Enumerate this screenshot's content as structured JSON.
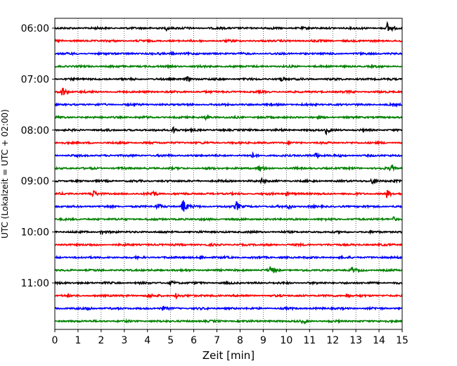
{
  "chart_data": {
    "type": "line",
    "title": "",
    "xlabel": "Zeit  [min]",
    "ylabel": "UTC (Lokalzeit = UTC + 02:00)",
    "xlim": [
      0,
      15
    ],
    "x_ticks": [
      0,
      1,
      2,
      3,
      4,
      5,
      6,
      7,
      8,
      9,
      10,
      11,
      12,
      13,
      14,
      15
    ],
    "x_tick_labels": [
      "0",
      "1",
      "2",
      "3",
      "4",
      "5",
      "6",
      "7",
      "8",
      "9",
      "10",
      "11",
      "12",
      "13",
      "14",
      "15"
    ],
    "grid": {
      "x": true,
      "y": false,
      "style": "dotted"
    },
    "legend": "none",
    "y_tick_labels": [
      "06:00",
      "07:00",
      "08:00",
      "09:00",
      "10:00",
      "11:00"
    ],
    "trace_interval_min": 15,
    "trace_colors": [
      "#000000",
      "#ff0000",
      "#0000ff",
      "#008000"
    ],
    "traces": [
      {
        "start": "06:00",
        "color": "#000000",
        "events": [
          {
            "t": 14.35,
            "amp": 1.3
          },
          {
            "t": 4.8,
            "amp": 0.5
          }
        ]
      },
      {
        "start": "06:15",
        "color": "#ff0000",
        "events": []
      },
      {
        "start": "06:30",
        "color": "#0000ff",
        "events": [
          {
            "t": 5.0,
            "amp": 0.4
          }
        ]
      },
      {
        "start": "06:45",
        "color": "#008000",
        "events": []
      },
      {
        "start": "07:00",
        "color": "#000000",
        "events": [
          {
            "t": 5.7,
            "amp": 0.7
          },
          {
            "t": 9.7,
            "amp": 0.8
          }
        ]
      },
      {
        "start": "07:15",
        "color": "#ff0000",
        "events": [
          {
            "t": 0.3,
            "amp": 1.5
          }
        ]
      },
      {
        "start": "07:30",
        "color": "#0000ff",
        "events": []
      },
      {
        "start": "07:45",
        "color": "#008000",
        "events": [
          {
            "t": 6.5,
            "amp": 0.5
          }
        ]
      },
      {
        "start": "08:00",
        "color": "#000000",
        "events": [
          {
            "t": 5.1,
            "amp": 0.8
          },
          {
            "t": 11.7,
            "amp": 0.9
          }
        ]
      },
      {
        "start": "08:15",
        "color": "#ff0000",
        "events": []
      },
      {
        "start": "08:30",
        "color": "#0000ff",
        "events": [
          {
            "t": 11.25,
            "amp": 0.9
          },
          {
            "t": 8.5,
            "amp": 0.5
          }
        ]
      },
      {
        "start": "08:45",
        "color": "#008000",
        "events": [
          {
            "t": 8.8,
            "amp": 0.9
          },
          {
            "t": 14.5,
            "amp": 0.8
          }
        ]
      },
      {
        "start": "09:00",
        "color": "#000000",
        "events": [
          {
            "t": 13.7,
            "amp": 1.0
          },
          {
            "t": 8.9,
            "amp": 0.6
          }
        ]
      },
      {
        "start": "09:15",
        "color": "#ff0000",
        "events": [
          {
            "t": 1.6,
            "amp": 1.1
          },
          {
            "t": 4.2,
            "amp": 0.8
          },
          {
            "t": 14.3,
            "amp": 1.3
          },
          {
            "t": 10.0,
            "amp": 0.5
          }
        ]
      },
      {
        "start": "09:30",
        "color": "#0000ff",
        "events": [
          {
            "t": 5.5,
            "amp": 2.4
          },
          {
            "t": 7.8,
            "amp": 1.6
          },
          {
            "t": 4.4,
            "amp": 0.9
          },
          {
            "t": 10.1,
            "amp": 0.6
          }
        ]
      },
      {
        "start": "09:45",
        "color": "#008000",
        "events": [
          {
            "t": 14.6,
            "amp": 0.6
          }
        ]
      },
      {
        "start": "10:00",
        "color": "#000000",
        "events": [
          {
            "t": 2.0,
            "amp": 0.5
          }
        ]
      },
      {
        "start": "10:15",
        "color": "#ff0000",
        "events": []
      },
      {
        "start": "10:30",
        "color": "#0000ff",
        "events": [
          {
            "t": 6.3,
            "amp": 0.4
          }
        ]
      },
      {
        "start": "10:45",
        "color": "#008000",
        "events": [
          {
            "t": 9.3,
            "amp": 1.0
          },
          {
            "t": 12.8,
            "amp": 0.6
          }
        ]
      },
      {
        "start": "11:00",
        "color": "#000000",
        "events": [
          {
            "t": 5.0,
            "amp": 0.6
          }
        ]
      },
      {
        "start": "11:15",
        "color": "#ff0000",
        "events": [
          {
            "t": 5.2,
            "amp": 0.7
          },
          {
            "t": 12.6,
            "amp": 0.6
          },
          {
            "t": 4.0,
            "amp": 0.5
          }
        ]
      },
      {
        "start": "11:30",
        "color": "#0000ff",
        "events": [
          {
            "t": 1.4,
            "amp": 0.8
          },
          {
            "t": 4.6,
            "amp": 0.5
          }
        ]
      },
      {
        "start": "11:45",
        "color": "#008000",
        "events": [
          {
            "t": 10.7,
            "amp": 0.6
          }
        ]
      }
    ]
  }
}
